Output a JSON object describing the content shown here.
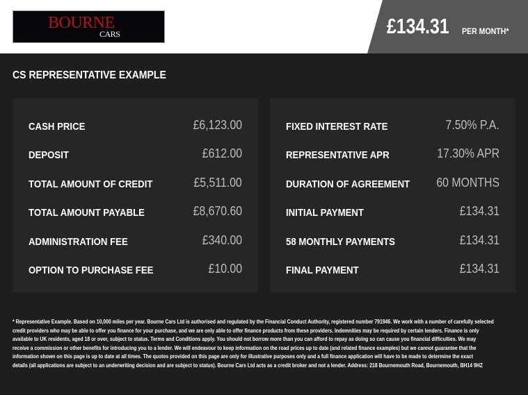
{
  "header": {
    "logo_text_main": "BOURNE",
    "logo_text_sub": "CARS",
    "price": "£134.31",
    "price_suffix": "PER MONTH*"
  },
  "title": "CS REPRESENTATIVE EXAMPLE",
  "left_panel": [
    {
      "label": "CASH PRICE",
      "value": "£6,123.00"
    },
    {
      "label": "DEPOSIT",
      "value": "£612.00"
    },
    {
      "label": "TOTAL AMOUNT OF CREDIT",
      "value": "£5,511.00"
    },
    {
      "label": "TOTAL AMOUNT PAYABLE",
      "value": "£8,670.60"
    },
    {
      "label": "ADMINISTRATION FEE",
      "value": "£340.00"
    },
    {
      "label": "OPTION TO PURCHASE FEE",
      "value": "£10.00"
    }
  ],
  "right_panel": [
    {
      "label": "FIXED INTEREST RATE",
      "value": "7.50% P.A."
    },
    {
      "label": "REPRESENTATIVE APR",
      "value": "17.30% APR"
    },
    {
      "label": "DURATION OF AGREEMENT",
      "value": "60 MONTHS"
    },
    {
      "label": "INITIAL PAYMENT",
      "value": "£134.31"
    },
    {
      "label": "58 MONTHLY PAYMENTS",
      "value": "£134.31"
    },
    {
      "label": "FINAL PAYMENT",
      "value": "£134.31"
    }
  ],
  "disclaimer_lines": [
    "* Representative Example. Based on 10,000 miles per year. Bourne Cars Ltd is authorised and regulated by the Financial Conduct Authority, registered number 791946. We work with a number of carefully selected",
    "credit providers who may be able to offer you finance for your purchase, and we are only able to offer finance products from these providers. Indemnities may be required by certain lenders. Finance is only",
    "available to UK residents, aged 18 or over, subject to status. Terms and Conditions apply. You should not borrow more than you can afford to repay as doing so can cause you financial difficulties. We may",
    "receive a commission or other benefits for introducing you to a lender. We will endeavour to keep information on the road prices up to date (and related finance examples) but we cannot guarantee that the",
    "information shown on this page is up to date at all times. The quotes provided on this page are only for illustrative purposes only and a full finance application will have to be made to determine the exact",
    "details (all applications are subject to an underwriting decision and are subject to status). Bourne Cars Ltd acts as a credit broker and not a lender. Address:  218 Bournemouth Road, Bournemouth, BH14 9HZ"
  ]
}
